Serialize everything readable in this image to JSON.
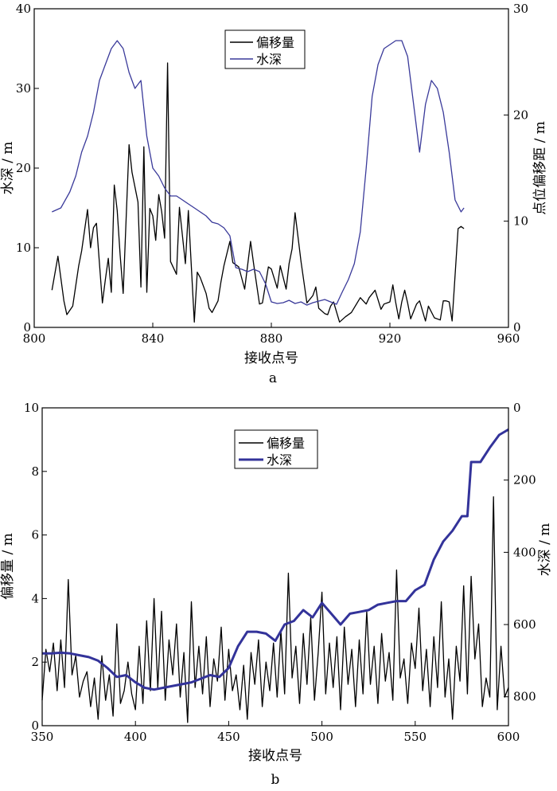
{
  "chart_data": [
    {
      "id": "a",
      "type": "line",
      "subtitle": "a",
      "xlabel": "接收点号",
      "ylabel_left": "水深 / m",
      "ylabel_right": "点位偏移距 / m",
      "xlim": [
        800,
        960
      ],
      "ylim_left": [
        0,
        40
      ],
      "ylim_right": [
        0,
        30
      ],
      "xticks": [
        "800",
        "840",
        "880",
        "920",
        "960"
      ],
      "yticks_left": [
        "0",
        "10",
        "20",
        "30",
        "40"
      ],
      "yticks_right": [
        "0",
        "10",
        "20",
        "30"
      ],
      "legend": {
        "position": "top-center",
        "entries": [
          "偏移量",
          "水深"
        ]
      },
      "series": [
        {
          "name": "偏移量",
          "axis": "right",
          "color": "#000000",
          "x": [
            806,
            808,
            810,
            811,
            813,
            815,
            816,
            818,
            819,
            820,
            821,
            823,
            824,
            825,
            826,
            827,
            828,
            829,
            830,
            832,
            833,
            835,
            836,
            837,
            838,
            839,
            840,
            841,
            842,
            843,
            844,
            845,
            846,
            848,
            849,
            851,
            852,
            854,
            855,
            856,
            858,
            859,
            860,
            862,
            863,
            864,
            866,
            867,
            869,
            871,
            873,
            874,
            876,
            877,
            879,
            880,
            882,
            883,
            885,
            886,
            887,
            888,
            890,
            892,
            894,
            895,
            896,
            898,
            899,
            900,
            901,
            903,
            905,
            907,
            910,
            912,
            913,
            915,
            917,
            918,
            920,
            921,
            922,
            923,
            924,
            925,
            926,
            927,
            929,
            930,
            932,
            933,
            935,
            937,
            938,
            939,
            940,
            941,
            943,
            944,
            945
          ],
          "values": [
            3.5,
            6.7,
            2.5,
            1.2,
            2.0,
            5.8,
            7.2,
            11.1,
            7.5,
            9.4,
            9.8,
            2.3,
            4.5,
            6.5,
            3.3,
            13.4,
            11.0,
            6.8,
            3.2,
            17.2,
            14.6,
            11.8,
            3.8,
            17.0,
            3.3,
            11.2,
            10.5,
            8.2,
            12.5,
            10.9,
            8.4,
            24.9,
            6.2,
            5.0,
            11.3,
            6.0,
            11.0,
            0.5,
            5.2,
            4.7,
            3.2,
            1.8,
            1.4,
            2.5,
            4.3,
            5.8,
            8.1,
            6.1,
            5.7,
            3.6,
            8.1,
            6.0,
            2.2,
            2.3,
            5.7,
            5.5,
            3.7,
            5.8,
            3.6,
            6.0,
            7.4,
            10.8,
            6.2,
            2.3,
            3.0,
            3.8,
            1.8,
            1.3,
            1.2,
            2.0,
            2.4,
            0.5,
            1.0,
            1.4,
            2.8,
            2.2,
            2.8,
            3.5,
            1.7,
            2.2,
            2.4,
            4.0,
            2.3,
            0.8,
            2.4,
            3.5,
            2.3,
            0.8,
            2.2,
            2.5,
            0.6,
            2.0,
            0.9,
            0.7,
            2.5,
            2.5,
            2.4,
            0.6,
            9.3,
            9.5,
            9.3
          ],
          "values_note": "x-sampled approximation"
        },
        {
          "name": "水深",
          "axis": "left",
          "color": "#3a3a9a",
          "x": [
            806,
            809,
            812,
            814,
            816,
            818,
            820,
            822,
            824,
            826,
            828,
            830,
            832,
            834,
            836,
            838,
            840,
            842,
            844,
            846,
            848,
            850,
            852,
            854,
            856,
            858,
            860,
            862,
            864,
            866,
            868,
            870,
            872,
            874,
            876,
            878,
            880,
            882,
            884,
            886,
            888,
            890,
            892,
            894,
            896,
            898,
            900,
            902,
            904,
            906,
            908,
            910,
            912,
            914,
            916,
            918,
            920,
            922,
            924,
            926,
            928,
            930,
            932,
            934,
            936,
            938,
            940,
            942,
            944,
            945
          ],
          "values": [
            14.5,
            15,
            17,
            19,
            22,
            24,
            27,
            31,
            33,
            35,
            36,
            35,
            32,
            30,
            31,
            24,
            20,
            19,
            17.5,
            16.5,
            16.5,
            16,
            15.5,
            15,
            14.5,
            14,
            13.2,
            13,
            12.5,
            11.5,
            7.5,
            7.3,
            7.0,
            7.3,
            7.0,
            5.5,
            3.2,
            3.0,
            3.1,
            3.4,
            3.0,
            3.2,
            2.8,
            3.1,
            3.3,
            3.5,
            3.2,
            2.9,
            4.5,
            6.0,
            8.0,
            12,
            20,
            29,
            33,
            35,
            35.5,
            36,
            36,
            34,
            28,
            22,
            28,
            31,
            30,
            27,
            22,
            16,
            14.5,
            15
          ]
        }
      ]
    },
    {
      "id": "b",
      "type": "line",
      "subtitle": "b",
      "xlabel": "接收点号",
      "ylabel_left": "偏移量 / m",
      "ylabel_right": "水深 / m",
      "xlim": [
        350,
        600
      ],
      "ylim_left": [
        0,
        10
      ],
      "ylim_right": [
        0,
        880
      ],
      "right_axis_inverted": true,
      "xticks": [
        "350",
        "400",
        "450",
        "500",
        "550",
        "600"
      ],
      "yticks_left": [
        "0",
        "2",
        "4",
        "6",
        "8",
        "10"
      ],
      "yticks_right": [
        "0",
        "200",
        "400",
        "600",
        "800"
      ],
      "legend": {
        "position": "top-center",
        "entries": [
          "偏移量",
          "水深"
        ]
      },
      "series": [
        {
          "name": "偏移量",
          "axis": "left",
          "color": "#000000",
          "x": [
            350,
            352,
            354,
            356,
            358,
            360,
            362,
            364,
            366,
            368,
            370,
            372,
            374,
            376,
            378,
            380,
            382,
            384,
            386,
            388,
            390,
            392,
            394,
            396,
            398,
            400,
            402,
            404,
            406,
            408,
            410,
            412,
            414,
            416,
            418,
            420,
            422,
            424,
            426,
            428,
            430,
            432,
            434,
            436,
            438,
            440,
            442,
            444,
            446,
            448,
            450,
            452,
            454,
            456,
            458,
            460,
            462,
            464,
            466,
            468,
            470,
            472,
            474,
            476,
            478,
            480,
            482,
            484,
            486,
            488,
            490,
            492,
            494,
            496,
            498,
            500,
            502,
            504,
            506,
            508,
            510,
            512,
            514,
            516,
            518,
            520,
            522,
            524,
            526,
            528,
            530,
            532,
            534,
            536,
            538,
            540,
            542,
            544,
            546,
            548,
            550,
            552,
            554,
            556,
            558,
            560,
            562,
            564,
            566,
            568,
            570,
            572,
            574,
            576,
            578,
            580,
            582,
            584,
            586,
            588,
            590,
            592,
            594,
            596,
            598,
            600
          ],
          "values": [
            0.8,
            2.4,
            1.7,
            2.6,
            1.1,
            2.7,
            1.2,
            4.6,
            1.6,
            2.2,
            0.9,
            1.4,
            1.7,
            0.6,
            1.5,
            0.2,
            2.2,
            0.8,
            1.6,
            0.3,
            3.2,
            0.7,
            1.1,
            2.0,
            1.0,
            0.5,
            2.5,
            0.7,
            3.3,
            1.1,
            4.0,
            1.2,
            3.6,
            0.8,
            2.7,
            1.6,
            3.2,
            0.9,
            2.3,
            0.1,
            3.9,
            1.2,
            2.5,
            1.0,
            2.8,
            0.6,
            2.1,
            1.4,
            3.1,
            0.8,
            2.4,
            1.1,
            1.6,
            0.5,
            1.9,
            0.2,
            2.3,
            1.3,
            2.7,
            0.6,
            2.0,
            1.1,
            2.6,
            0.9,
            3.0,
            1.0,
            4.8,
            1.5,
            2.5,
            0.7,
            2.9,
            1.3,
            3.4,
            0.8,
            2.3,
            4.2,
            1.0,
            2.6,
            1.2,
            2.8,
            0.5,
            3.1,
            1.3,
            2.4,
            0.6,
            2.7,
            1.0,
            3.6,
            1.3,
            2.5,
            0.7,
            2.9,
            1.4,
            2.3,
            0.8,
            4.9,
            1.5,
            2.1,
            0.7,
            2.6,
            1.8,
            3.7,
            1.1,
            2.4,
            0.6,
            2.8,
            1.2,
            3.9,
            0.9,
            2.1,
            0.2,
            2.5,
            1.4,
            4.4,
            1.0,
            4.7,
            2.1,
            3.2,
            0.6,
            1.5,
            0.9,
            7.2,
            0.5,
            2.5,
            0.9,
            1.2
          ]
        },
        {
          "name": "水深",
          "axis": "right",
          "color": "#33339a",
          "x": [
            350,
            355,
            360,
            365,
            370,
            375,
            380,
            385,
            390,
            395,
            400,
            405,
            410,
            415,
            420,
            425,
            430,
            435,
            440,
            445,
            450,
            455,
            460,
            465,
            470,
            475,
            480,
            485,
            490,
            495,
            500,
            505,
            510,
            515,
            520,
            525,
            530,
            535,
            540,
            545,
            550,
            555,
            560,
            565,
            570,
            575,
            578,
            580,
            585,
            590,
            595,
            600
          ],
          "values": [
            680,
            680,
            678,
            680,
            685,
            690,
            700,
            720,
            745,
            740,
            760,
            775,
            780,
            775,
            770,
            765,
            760,
            750,
            740,
            745,
            720,
            660,
            620,
            620,
            625,
            645,
            600,
            590,
            560,
            580,
            540,
            570,
            600,
            570,
            565,
            560,
            545,
            540,
            535,
            535,
            505,
            490,
            420,
            370,
            340,
            300,
            300,
            150,
            150,
            110,
            75,
            60
          ]
        }
      ]
    }
  ]
}
